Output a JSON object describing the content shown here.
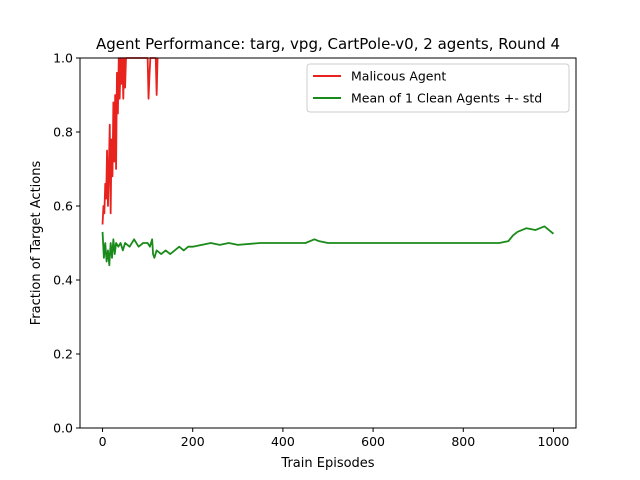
{
  "chart_data": {
    "type": "line",
    "title": "Agent Performance: targ, vpg, CartPole-v0, 2 agents, Round 4",
    "xlabel": "Train Episodes",
    "ylabel": "Fraction of Target Actions",
    "xlim": [
      -50,
      1050
    ],
    "ylim": [
      0,
      1
    ],
    "xticks": [
      0,
      200,
      400,
      600,
      800,
      1000
    ],
    "yticks": [
      0.0,
      0.2,
      0.4,
      0.6,
      0.8,
      1.0
    ],
    "xtick_labels": [
      "0",
      "200",
      "400",
      "600",
      "800",
      "1000"
    ],
    "ytick_labels": [
      "0.0",
      "0.2",
      "0.4",
      "0.6",
      "0.8",
      "1.0"
    ],
    "grid": false,
    "legend_position": "top-right",
    "series": [
      {
        "name": "Malicous Agent",
        "color": "#e8231e",
        "x": [
          0,
          2,
          4,
          6,
          8,
          10,
          12,
          14,
          16,
          18,
          20,
          22,
          24,
          26,
          28,
          30,
          32,
          34,
          36,
          38,
          40,
          42,
          44,
          46,
          48,
          50,
          52,
          100,
          102,
          104,
          106,
          118,
          120,
          122
        ],
        "y": [
          0.55,
          0.6,
          0.58,
          0.66,
          0.62,
          0.75,
          0.6,
          0.7,
          0.82,
          0.58,
          0.78,
          0.68,
          0.88,
          0.72,
          0.9,
          0.7,
          0.96,
          0.85,
          1.0,
          0.89,
          1.0,
          0.93,
          1.0,
          0.89,
          1.0,
          0.92,
          1.0,
          1.0,
          0.89,
          0.95,
          1.0,
          1.0,
          0.9,
          1.0
        ]
      },
      {
        "name": "Mean of 1 Clean Agents +- std",
        "color": "#1a8a1a",
        "x": [
          0,
          3,
          6,
          9,
          12,
          15,
          18,
          21,
          24,
          27,
          30,
          35,
          40,
          45,
          50,
          60,
          70,
          80,
          90,
          100,
          105,
          110,
          112,
          115,
          120,
          130,
          140,
          150,
          160,
          170,
          180,
          190,
          200,
          220,
          240,
          260,
          280,
          300,
          350,
          400,
          450,
          470,
          480,
          500,
          550,
          600,
          650,
          700,
          750,
          800,
          850,
          880,
          900,
          910,
          920,
          940,
          960,
          980,
          990,
          1000
        ],
        "y": [
          0.53,
          0.46,
          0.5,
          0.45,
          0.48,
          0.44,
          0.5,
          0.46,
          0.51,
          0.47,
          0.5,
          0.49,
          0.5,
          0.48,
          0.5,
          0.49,
          0.51,
          0.49,
          0.5,
          0.5,
          0.49,
          0.51,
          0.47,
          0.46,
          0.48,
          0.47,
          0.48,
          0.47,
          0.48,
          0.49,
          0.48,
          0.49,
          0.49,
          0.495,
          0.5,
          0.495,
          0.5,
          0.495,
          0.5,
          0.5,
          0.5,
          0.51,
          0.505,
          0.5,
          0.5,
          0.5,
          0.5,
          0.5,
          0.5,
          0.5,
          0.5,
          0.5,
          0.505,
          0.52,
          0.53,
          0.54,
          0.535,
          0.545,
          0.535,
          0.525
        ]
      }
    ]
  }
}
